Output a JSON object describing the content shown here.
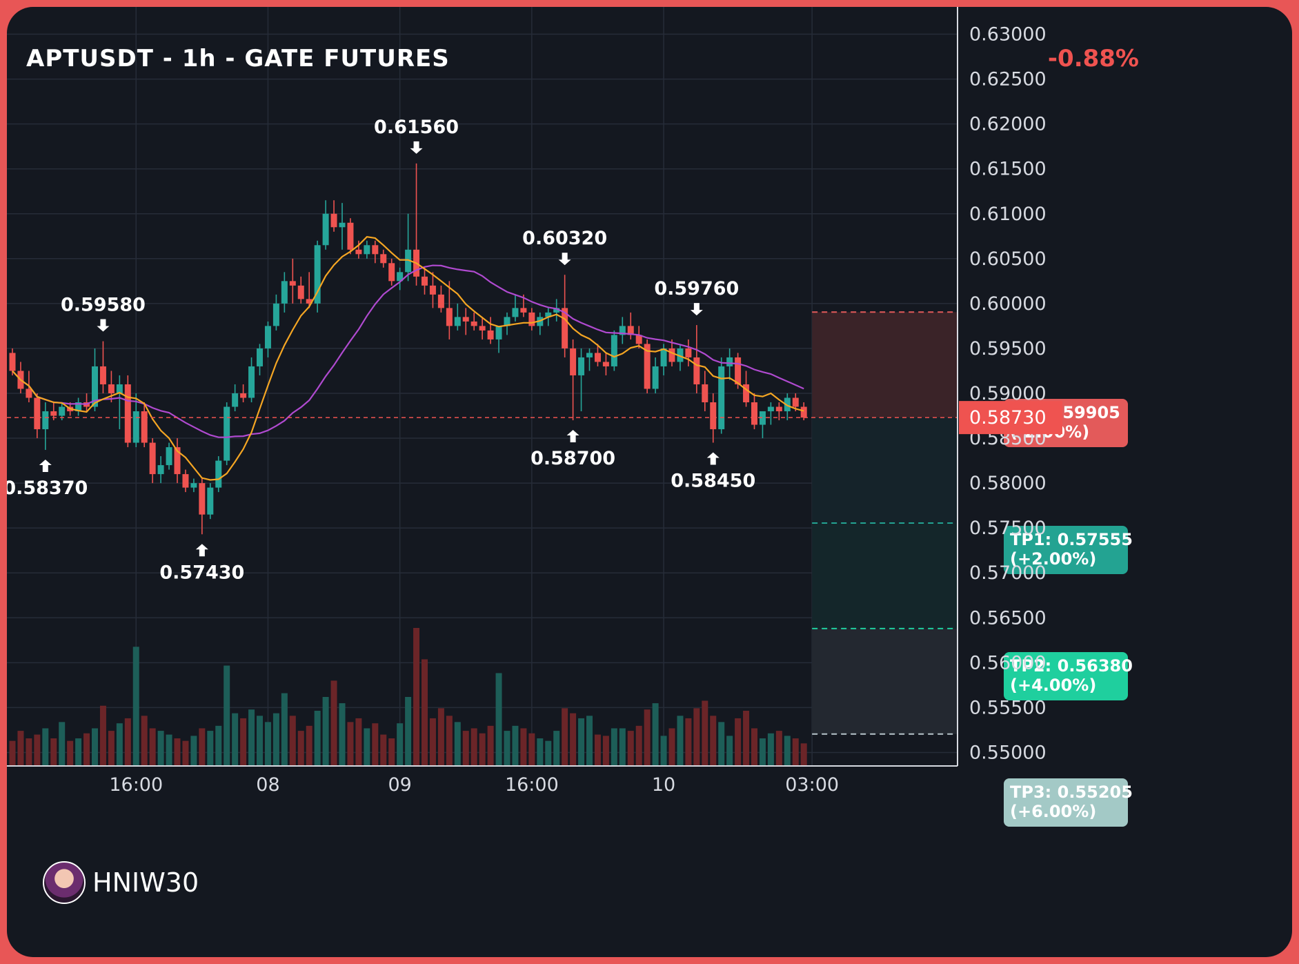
{
  "chart_data": {
    "type": "candlestick",
    "title": "APTUSDT - 1h - GATE FUTURES",
    "change_label": "-0.88%",
    "yticks": [
      "0.63000",
      "0.62500",
      "0.62000",
      "0.61500",
      "0.61000",
      "0.60500",
      "0.60000",
      "0.59500",
      "0.59000",
      "0.58500",
      "0.58000",
      "0.57500",
      "0.57000",
      "0.56500",
      "0.56000",
      "0.55500",
      "0.55000"
    ],
    "xticks": [
      "16:00",
      "08",
      "09",
      "16:00",
      "10",
      "03:00"
    ],
    "ylim": [
      0.5465,
      0.6315
    ],
    "current_price": "0.58730",
    "annotations": [
      {
        "label": "0.59580",
        "direction": "down",
        "index": 11
      },
      {
        "label": "0.58370",
        "direction": "up",
        "index": 4
      },
      {
        "label": "0.57430",
        "direction": "up",
        "index": 23
      },
      {
        "label": "0.61560",
        "direction": "down",
        "index": 49
      },
      {
        "label": "0.60320",
        "direction": "down",
        "index": 67
      },
      {
        "label": "0.58700",
        "direction": "up",
        "index": 68
      },
      {
        "label": "0.59760",
        "direction": "down",
        "index": 83
      },
      {
        "label": "0.58450",
        "direction": "up",
        "index": 85
      }
    ],
    "levels": [
      {
        "name": "SL",
        "price": 0.59905,
        "label": "SL: 0.59905",
        "pct": "(-2.00%)",
        "color": "#e35a5a"
      },
      {
        "name": "TP1",
        "price": 0.57555,
        "label": "TP1: 0.57555",
        "pct": "(+2.00%)",
        "color": "#23a392"
      },
      {
        "name": "TP2",
        "price": 0.5638,
        "label": "TP2: 0.56380",
        "pct": "(+4.00%)",
        "color": "#1fcf9e"
      },
      {
        "name": "TP3",
        "price": 0.55205,
        "label": "TP3: 0.55205",
        "pct": "(+6.00%)",
        "color": "#a3c9c6"
      }
    ],
    "candles": [
      [
        0.5945,
        0.595,
        0.592,
        0.5925
      ],
      [
        0.5925,
        0.5935,
        0.59,
        0.5905
      ],
      [
        0.5905,
        0.5925,
        0.589,
        0.5895
      ],
      [
        0.5895,
        0.59,
        0.585,
        0.586
      ],
      [
        0.586,
        0.589,
        0.5837,
        0.588
      ],
      [
        0.588,
        0.589,
        0.587,
        0.5875
      ],
      [
        0.5875,
        0.589,
        0.587,
        0.5885
      ],
      [
        0.5885,
        0.589,
        0.5875,
        0.588
      ],
      [
        0.588,
        0.5895,
        0.5875,
        0.589
      ],
      [
        0.589,
        0.59,
        0.588,
        0.5885
      ],
      [
        0.5885,
        0.595,
        0.588,
        0.593
      ],
      [
        0.593,
        0.5958,
        0.59,
        0.591
      ],
      [
        0.591,
        0.5925,
        0.589,
        0.59
      ],
      [
        0.59,
        0.592,
        0.586,
        0.591
      ],
      [
        0.591,
        0.592,
        0.584,
        0.5845
      ],
      [
        0.5845,
        0.59,
        0.584,
        0.588
      ],
      [
        0.588,
        0.589,
        0.584,
        0.5845
      ],
      [
        0.5845,
        0.585,
        0.58,
        0.581
      ],
      [
        0.581,
        0.583,
        0.58,
        0.582
      ],
      [
        0.582,
        0.5845,
        0.5815,
        0.584
      ],
      [
        0.584,
        0.585,
        0.58,
        0.581
      ],
      [
        0.581,
        0.5815,
        0.579,
        0.5795
      ],
      [
        0.5795,
        0.5805,
        0.579,
        0.58
      ],
      [
        0.58,
        0.5805,
        0.5743,
        0.5765
      ],
      [
        0.5765,
        0.58,
        0.576,
        0.5795
      ],
      [
        0.5795,
        0.583,
        0.579,
        0.5825
      ],
      [
        0.5825,
        0.589,
        0.582,
        0.5885
      ],
      [
        0.5885,
        0.591,
        0.588,
        0.59
      ],
      [
        0.59,
        0.591,
        0.589,
        0.5895
      ],
      [
        0.5895,
        0.594,
        0.589,
        0.593
      ],
      [
        0.593,
        0.5955,
        0.592,
        0.595
      ],
      [
        0.595,
        0.598,
        0.594,
        0.5975
      ],
      [
        0.5975,
        0.601,
        0.597,
        0.6
      ],
      [
        0.6,
        0.6035,
        0.599,
        0.6025
      ],
      [
        0.6025,
        0.605,
        0.6,
        0.602
      ],
      [
        0.602,
        0.603,
        0.6,
        0.6005
      ],
      [
        0.6005,
        0.6035,
        0.5995,
        0.6
      ],
      [
        0.6,
        0.607,
        0.599,
        0.6065
      ],
      [
        0.6065,
        0.6115,
        0.606,
        0.61
      ],
      [
        0.61,
        0.6115,
        0.608,
        0.6085
      ],
      [
        0.6085,
        0.6112,
        0.606,
        0.609
      ],
      [
        0.609,
        0.6095,
        0.6055,
        0.606
      ],
      [
        0.606,
        0.607,
        0.605,
        0.6055
      ],
      [
        0.6055,
        0.607,
        0.605,
        0.6065
      ],
      [
        0.6065,
        0.607,
        0.6045,
        0.6055
      ],
      [
        0.6055,
        0.606,
        0.604,
        0.6045
      ],
      [
        0.6045,
        0.605,
        0.602,
        0.6025
      ],
      [
        0.6025,
        0.604,
        0.6015,
        0.6035
      ],
      [
        0.6035,
        0.61,
        0.6025,
        0.606
      ],
      [
        0.606,
        0.6156,
        0.602,
        0.603
      ],
      [
        0.603,
        0.604,
        0.601,
        0.602
      ],
      [
        0.602,
        0.6035,
        0.5995,
        0.601
      ],
      [
        0.601,
        0.602,
        0.599,
        0.5995
      ],
      [
        0.5995,
        0.6025,
        0.596,
        0.5975
      ],
      [
        0.5975,
        0.6,
        0.597,
        0.5985
      ],
      [
        0.5985,
        0.5995,
        0.5965,
        0.598
      ],
      [
        0.598,
        0.599,
        0.597,
        0.5975
      ],
      [
        0.5975,
        0.5985,
        0.596,
        0.597
      ],
      [
        0.597,
        0.5985,
        0.5955,
        0.596
      ],
      [
        0.596,
        0.5975,
        0.5945,
        0.5975
      ],
      [
        0.5975,
        0.599,
        0.5965,
        0.5985
      ],
      [
        0.5985,
        0.601,
        0.598,
        0.5995
      ],
      [
        0.5995,
        0.601,
        0.5985,
        0.599
      ],
      [
        0.599,
        0.5995,
        0.597,
        0.5975
      ],
      [
        0.5975,
        0.599,
        0.5965,
        0.5985
      ],
      [
        0.5985,
        0.5995,
        0.5975,
        0.599
      ],
      [
        0.599,
        0.6005,
        0.598,
        0.5995
      ],
      [
        0.5995,
        0.6032,
        0.594,
        0.595
      ],
      [
        0.595,
        0.596,
        0.587,
        0.592
      ],
      [
        0.592,
        0.595,
        0.588,
        0.594
      ],
      [
        0.594,
        0.595,
        0.5925,
        0.5945
      ],
      [
        0.5945,
        0.5955,
        0.593,
        0.5935
      ],
      [
        0.5935,
        0.5945,
        0.592,
        0.593
      ],
      [
        0.593,
        0.597,
        0.5925,
        0.5965
      ],
      [
        0.5965,
        0.5985,
        0.5955,
        0.5975
      ],
      [
        0.5975,
        0.599,
        0.596,
        0.5965
      ],
      [
        0.5965,
        0.5975,
        0.595,
        0.5955
      ],
      [
        0.5955,
        0.596,
        0.59,
        0.5905
      ],
      [
        0.5905,
        0.594,
        0.59,
        0.593
      ],
      [
        0.593,
        0.5955,
        0.592,
        0.595
      ],
      [
        0.595,
        0.596,
        0.593,
        0.5935
      ],
      [
        0.5935,
        0.5955,
        0.5925,
        0.595
      ],
      [
        0.595,
        0.596,
        0.593,
        0.594
      ],
      [
        0.594,
        0.5976,
        0.59,
        0.591
      ],
      [
        0.591,
        0.5925,
        0.588,
        0.589
      ],
      [
        0.589,
        0.59,
        0.5845,
        0.586
      ],
      [
        0.586,
        0.594,
        0.5855,
        0.593
      ],
      [
        0.593,
        0.595,
        0.5915,
        0.594
      ],
      [
        0.594,
        0.5945,
        0.5905,
        0.591
      ],
      [
        0.591,
        0.5925,
        0.5885,
        0.589
      ],
      [
        0.589,
        0.59,
        0.586,
        0.5865
      ],
      [
        0.5865,
        0.588,
        0.585,
        0.588
      ],
      [
        0.588,
        0.589,
        0.5865,
        0.5885
      ],
      [
        0.5885,
        0.589,
        0.587,
        0.588
      ],
      [
        0.588,
        0.59,
        0.587,
        0.5895
      ],
      [
        0.5895,
        0.59,
        0.588,
        0.5885
      ],
      [
        0.5885,
        0.589,
        0.587,
        0.5873
      ]
    ],
    "volume": [
      20,
      28,
      22,
      25,
      30,
      22,
      35,
      20,
      22,
      26,
      30,
      48,
      28,
      34,
      38,
      95,
      40,
      30,
      28,
      25,
      22,
      20,
      24,
      30,
      28,
      32,
      80,
      42,
      38,
      45,
      40,
      35,
      42,
      58,
      40,
      28,
      32,
      44,
      55,
      68,
      50,
      35,
      38,
      30,
      34,
      25,
      22,
      34,
      55,
      110,
      85,
      38,
      46,
      40,
      35,
      28,
      30,
      26,
      32,
      74,
      28,
      32,
      30,
      26,
      22,
      20,
      28,
      46,
      42,
      38,
      40,
      25,
      24,
      30,
      30,
      28,
      32,
      45,
      50,
      24,
      30,
      40,
      38,
      46,
      52,
      40,
      35,
      24,
      38,
      44,
      30,
      22,
      26,
      28,
      24,
      22,
      18
    ]
  },
  "watermark": "HNIW30"
}
